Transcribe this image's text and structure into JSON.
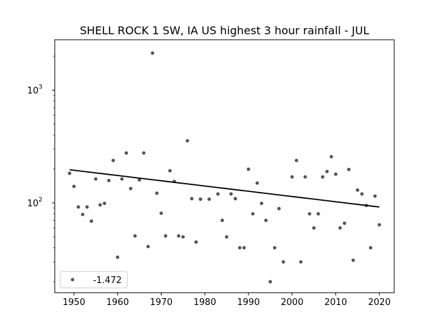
{
  "chart_data": {
    "type": "scatter",
    "title": "SHELL ROCK 1 SW, IA US highest 3 hour rainfall - JUL",
    "xlabel": "",
    "ylabel": "",
    "xlim": [
      1945.6,
      2023.4
    ],
    "ylim": [
      16,
      2800
    ],
    "yscale": "log",
    "grid": false,
    "legend": {
      "location": "lower-left",
      "entries": [
        {
          "label": "-1.472",
          "marker": "dot"
        }
      ]
    },
    "x_ticks": [
      1950,
      1960,
      1970,
      1980,
      1990,
      2000,
      2010,
      2020
    ],
    "y_ticks": [
      {
        "value": 100,
        "base": "10",
        "exp": "2"
      },
      {
        "value": 1000,
        "base": "10",
        "exp": "3"
      }
    ],
    "colors": {
      "points": "#555555",
      "trend": "#000000"
    },
    "series": [
      {
        "name": "-1.472",
        "points": [
          [
            1949,
            183
          ],
          [
            1950,
            140
          ],
          [
            1951,
            92
          ],
          [
            1952,
            79
          ],
          [
            1953,
            92
          ],
          [
            1954,
            69
          ],
          [
            1955,
            163
          ],
          [
            1956,
            96
          ],
          [
            1957,
            99
          ],
          [
            1958,
            158
          ],
          [
            1959,
            238
          ],
          [
            1960,
            33
          ],
          [
            1961,
            163
          ],
          [
            1962,
            277
          ],
          [
            1963,
            134
          ],
          [
            1964,
            51
          ],
          [
            1965,
            160
          ],
          [
            1966,
            277
          ],
          [
            1967,
            41
          ],
          [
            1968,
            2130
          ],
          [
            1969,
            122
          ],
          [
            1970,
            81
          ],
          [
            1971,
            51
          ],
          [
            1972,
            193
          ],
          [
            1973,
            155
          ],
          [
            1974,
            51
          ],
          [
            1975,
            50
          ],
          [
            1976,
            356
          ],
          [
            1977,
            109
          ],
          [
            1978,
            45
          ],
          [
            1979,
            108
          ],
          [
            1981,
            108
          ],
          [
            1983,
            120
          ],
          [
            1984,
            70
          ],
          [
            1985,
            50
          ],
          [
            1986,
            120
          ],
          [
            1987,
            109
          ],
          [
            1988,
            40
          ],
          [
            1989,
            40
          ],
          [
            1990,
            199
          ],
          [
            1991,
            80
          ],
          [
            1992,
            150
          ],
          [
            1993,
            99
          ],
          [
            1994,
            70
          ],
          [
            1995,
            20
          ],
          [
            1996,
            40
          ],
          [
            1997,
            89
          ],
          [
            1998,
            30
          ],
          [
            2000,
            170
          ],
          [
            2001,
            238
          ],
          [
            2002,
            30
          ],
          [
            2003,
            170
          ],
          [
            2004,
            80
          ],
          [
            2005,
            60
          ],
          [
            2006,
            80
          ],
          [
            2007,
            170
          ],
          [
            2008,
            190
          ],
          [
            2009,
            257
          ],
          [
            2010,
            180
          ],
          [
            2011,
            60
          ],
          [
            2012,
            66
          ],
          [
            2013,
            198
          ],
          [
            2014,
            31
          ],
          [
            2015,
            130
          ],
          [
            2016,
            120
          ],
          [
            2017,
            95
          ],
          [
            2018,
            40
          ],
          [
            2019,
            115
          ],
          [
            2020,
            64
          ]
        ]
      }
    ],
    "trend": {
      "x": [
        1949,
        2020
      ],
      "y": [
        197,
        92
      ]
    }
  }
}
